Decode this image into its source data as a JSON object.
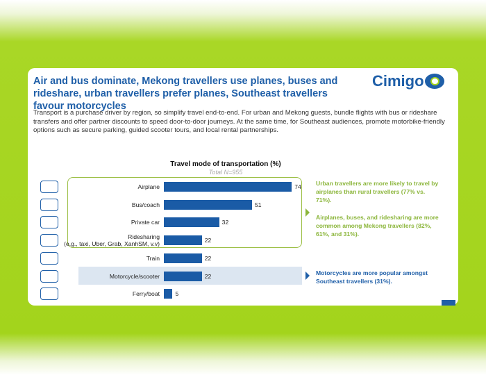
{
  "slide": {
    "heading": "Air and bus dominate, Mekong travellers use planes, buses and rideshare, urban travellers prefer planes, Southeast travellers favour motorcycles",
    "logo": "Cimigo",
    "body": "Transport is a purchase driver by region, so simplify travel end-to-end. For urban and Mekong guests, bundle flights with bus or rideshare transfers and offer partner discounts to speed door-to-door journeys. At the same time, for Southeast audiences, promote motorbike-friendly options such as secure parking, guided scooter tours, and local rental partnerships.",
    "annotations": [
      "Urban travellers are more likely to travel by airplanes than rural travellers (77% vs. 71%).",
      "Airplanes, buses, and ridesharing are more common among Mekong travellers (82%, 61%, and 31%).",
      "Motorcycles are more popular amongst Southeast travellers (31%)."
    ]
  },
  "chart_data": {
    "type": "bar",
    "orientation": "horizontal",
    "title": "Travel mode of transportation (%)",
    "subtitle": "Total N=955",
    "categories": [
      "Airplane",
      "Bus/coach",
      "Private car",
      "Ridesharing\n(e.g., taxi, Uber, Grab, XanhSM, v.v)",
      "Train",
      "Motorcycle/scooter",
      "Ferry/boat"
    ],
    "values": [
      74,
      51,
      32,
      22,
      22,
      22,
      5
    ],
    "color": "#1a5ba6"
  }
}
